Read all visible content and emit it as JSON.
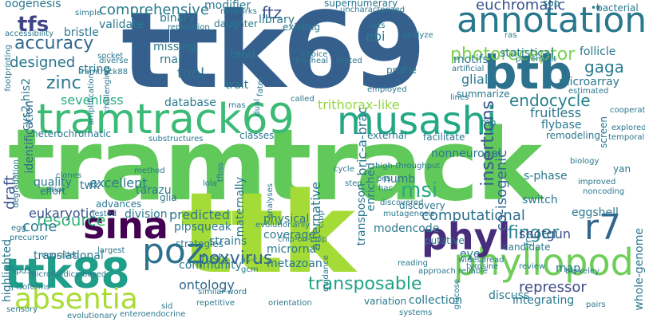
{
  "words": {
    "tramtrack": "tramtrack",
    "ttk69": "ttk69",
    "ttk": "ttk",
    "tramtrack69": "tramtrack69",
    "musashi": "musashi",
    "annotation": "annotation",
    "btb": "btb",
    "phyllopod": "phyllopod",
    "ttk88": "ttk88",
    "absentia": "absentia",
    "sina": "sina",
    "phyl": "phyl",
    "poz": "poz",
    "r7": "r7",
    "photoreceptor": "photoreceptor",
    "accuracy": "accuracy",
    "zinc": "zinc",
    "endocycle": "endocycle",
    "finger": "finger",
    "transposable": "transposable",
    "poxvirus": "poxvirus",
    "insertions": "insertions",
    "msi": "msi",
    "tfs": "tfs",
    "comprehensive": "comprehensive",
    "euchromatic": "euchromatic",
    "ftz": "ftz",
    "designed": "designed",
    "computational": "computational",
    "trithorax_like": "trithorax-like",
    "sevenless": "sevenless",
    "resource": "resource",
    "cone": "cone",
    "shotgun": "shotgun",
    "repressor": "repressor",
    "ontology": "ontology",
    "co_isogenic": "co-isogenic",
    "tool": "tool",
    "draft": "draft",
    "identification": "identification",
    "bric_a_brac": "bric-a-brac",
    "transposon": "transposon",
    "alternative": "alternative",
    "whole_genome": "whole-genome",
    "eukaryotic": "eukaryotic",
    "gaga": "gaga",
    "glial": "glial",
    "excellent": "excellent",
    "quality": "quality",
    "nonneuronal": "nonneuronal",
    "validate": "validate",
    "library": "library",
    "ebi": "ebi",
    "fruitless": "fruitless",
    "predicted": "predicted",
    "division": "division",
    "pipsqueak": "pipsqueak",
    "metazoan": "metazoan",
    "microrna": "microrna",
    "coverage": "coverage",
    "strains": "strains",
    "community": "community",
    "eggshell": "eggshell",
    "twk": "twk",
    "numb": "numb",
    "glia": "glia",
    "tarazu": "tarazu",
    "physical": "physical",
    "follicle": "follicle",
    "microarray": "microarray",
    "motifs": "motifs",
    "flybase": "flybase",
    "summarize": "summarize",
    "database": "database",
    "trait": "trait",
    "tend": "tend",
    "missing": "missing",
    "rnai": "rnai",
    "string": "string",
    "modencode": "modencode",
    "eye": "eye",
    "enriched": "enriched",
    "maternally": "maternally",
    "s_phase": "s-phase",
    "switch": "switch",
    "binary": "binary",
    "modifier": "modifier",
    "supernumerary": "supernumerary",
    "sop": "sop",
    "oogenesis": "oogenesis",
    "bristle": "bristle",
    "cys2_his2": "cys2-his2",
    "statistical": "statistical",
    "profile": "profile",
    "translational": "translational",
    "fushi": "fushi",
    "strategies": "strategies",
    "highlighted": "highlighted",
    "glucose": "glucose",
    "discuss": "discuss",
    "collection": "collection",
    "variation": "variation",
    "integrating": "integrating",
    "map": "map",
    "review": "review",
    "candidate": "candidate",
    "putative": "putative",
    "discovery": "discovery",
    "advances": "advances",
    "heterochromatic": "heterochromatic",
    "classes": "classes",
    "external": "external",
    "facilitate": "facilitate",
    "remodeling": "remodeling",
    "screen": "screen",
    "mb": "mb",
    "fru": "fru",
    "yan": "yan",
    "effort": "effort",
    "daughter": "daughter",
    "networks": "networks",
    "existing": "existing",
    "replication": "replication",
    "choice": "choice",
    "uncharacterized": "uncharacterized",
    "bacterial": "•bacterial",
    "accessibility": "accessibility",
    "sets": "sets",
    "analyze": "analyze",
    "tested": "tested",
    "employed": "employed",
    "tracheal": "tracheal",
    "ras": "ras",
    "p_element": "p-element",
    "artificial": "artificial",
    "estimated": "estimated",
    "cooperate": "cooperate",
    "explored": "explored",
    "temporal": "temporal",
    "biology": "biology",
    "improved": "improved",
    "noncoding": "noncoding",
    "berkeley": "berkeley",
    "widespread": "widespread",
    "reliable": "reliable",
    "tyrosine": "tyrosine",
    "approach": "approach",
    "reading": "reading",
    "guidance": "guidance",
    "ctbp": "ctbp",
    "mutagenesis": "mutagenesis",
    "discovered": "discovered",
    "high_throughput": "high-throughput",
    "pns": "pns",
    "hac": "hac",
    "chip_on_chip": "chip-on-chip",
    "evolutionarily": "evolutionarily",
    "repetitive": "repetitive",
    "orientation": "orientation",
    "similar_word": "similar-word",
    "enteroendocrine": "enteroendocrine",
    "evolutionary": "evolutionary",
    "sensory": "sensory",
    "isoforms": "isoforms",
    "microfluidics_based": "microfluidics-based",
    "rpd3": "rpd3",
    "largest": "largest",
    "precursor": "precursor",
    "egg": "egg",
    "degradation": "degradation",
    "prior": "prior",
    "clones": "clones",
    "method": "method",
    "lola": "lola",
    "tfbss": "tfbss",
    "analyses": "analyses",
    "nested": "nested",
    "substructures": "substructures",
    "cycle": "cycle",
    "step": "step",
    "called": "called",
    "rnas": "rnas",
    "dual": "dual",
    "lines": "lines",
    "diverse": "diverse",
    "socket": "socket",
    "challenging": "challenging",
    "tramtrack88": "tramtrack88",
    "footprinting": "footprinting",
    "simple": "simple",
    "fates": "fates",
    "gcm": "gcm",
    "as_c": "as-c",
    "pairs": "pairs",
    "systems": "systems",
    "sid": "sid",
    "engrailed": "engrailed",
    "amplification": "amplification"
  }
}
